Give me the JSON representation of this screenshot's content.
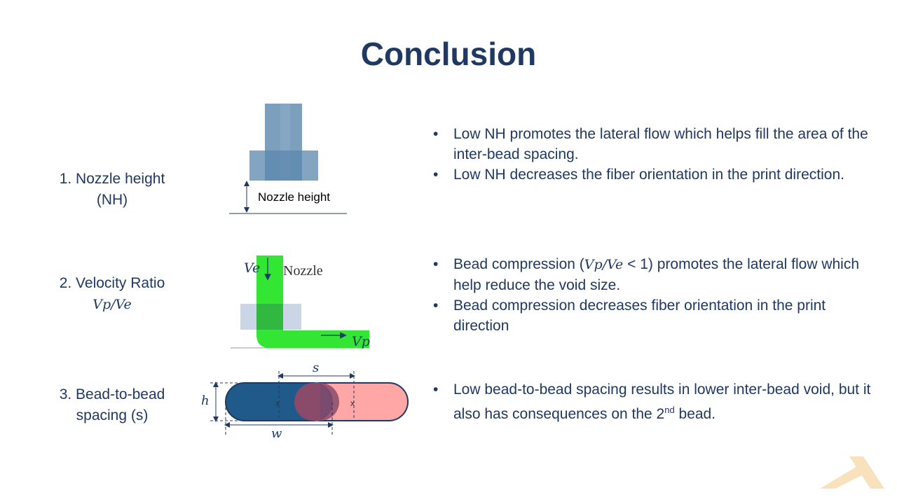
{
  "title": "Conclusion",
  "sections": [
    {
      "label_line1": "1. Nozzle height",
      "label_line2": "(NH)",
      "diagram_label": "Nozzle  height",
      "bullets": [
        "Low NH promotes the lateral flow which helps fill the area of the inter-bead spacing.",
        "Low NH decreases the fiber orientation in the print direction."
      ]
    },
    {
      "label_line1": "2. Velocity Ratio",
      "label_math": "Vp/Ve",
      "diagram_nozzle_label": "Nozzle",
      "diagram_ve": "Ve",
      "diagram_vp": "Vp",
      "bullet1_pre": "Bead compression (",
      "bullet1_math": "Vp/Ve",
      "bullet1_post": " < 1) promotes the lateral flow which help reduce the void size.",
      "bullet2": "Bead compression decreases fiber orientation in the print direction"
    },
    {
      "label_line1": "3. Bead-to-bead",
      "label_line2": "spacing (s)",
      "diagram_s": "s",
      "diagram_h": "h",
      "diagram_w": "w",
      "diagram_x1": "x",
      "diagram_x2": "x",
      "bullet_pre": "Low bead-to-bead spacing results in lower inter-bead void, but it also has consequences on the 2",
      "bullet_sup": "nd",
      "bullet_post": " bead."
    }
  ],
  "colors": {
    "title": "#1f3864",
    "nozzle_blue": "#5b87ad",
    "bead_green": "#33e633",
    "bead_dark_blue": "#1f5a8a",
    "bead_pink": "#ffa6a6",
    "logo_accent": "#f5d9a8"
  },
  "icons": {
    "logo": "x-logo-icon"
  }
}
